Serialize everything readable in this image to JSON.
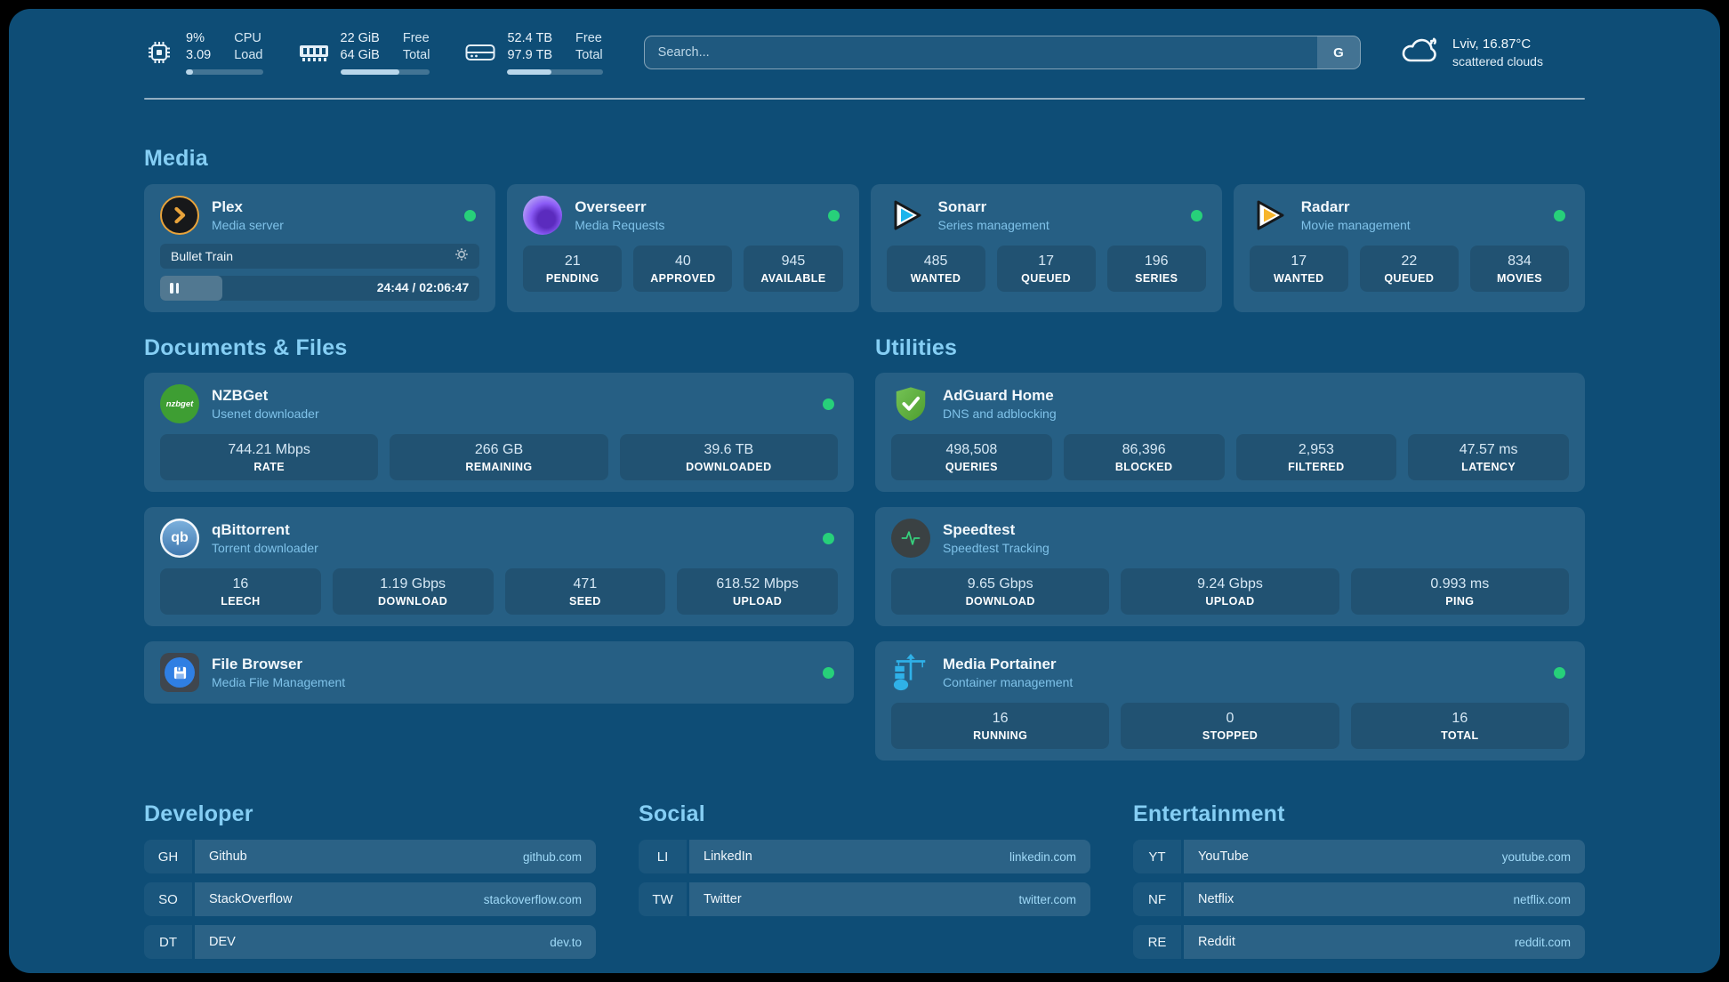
{
  "colors": {
    "background": "#0E4D76",
    "accent": "#85CEF4",
    "status_online": "#27D07A"
  },
  "topbar": {
    "stats": [
      {
        "icon": "cpu-icon",
        "values": [
          "9%",
          "3.09"
        ],
        "labels": [
          "CPU",
          "Load"
        ],
        "progress_pct": 9
      },
      {
        "icon": "memory-icon",
        "values": [
          "22 GiB",
          "64 GiB"
        ],
        "labels": [
          "Free",
          "Total"
        ],
        "progress_pct": 66
      },
      {
        "icon": "disk-icon",
        "values": [
          "52.4 TB",
          "97.9 TB"
        ],
        "labels": [
          "Free",
          "Total"
        ],
        "progress_pct": 46
      }
    ],
    "search": {
      "placeholder": "Search...",
      "button_label": "G"
    },
    "weather": {
      "icon": "cloud-icon",
      "line1": "Lviv, 16.87°C",
      "line2": "scattered clouds"
    }
  },
  "sections": {
    "media": {
      "title": "Media",
      "plex": {
        "title": "Plex",
        "subtitle": "Media server",
        "now_playing": "Bullet Train",
        "time": "24:44 / 02:06:47",
        "progress_pct": 19.5
      },
      "overseerr": {
        "title": "Overseerr",
        "subtitle": "Media Requests",
        "stats": [
          {
            "value": "21",
            "label": "PENDING"
          },
          {
            "value": "40",
            "label": "APPROVED"
          },
          {
            "value": "945",
            "label": "AVAILABLE"
          }
        ]
      },
      "sonarr": {
        "title": "Sonarr",
        "subtitle": "Series management",
        "stats": [
          {
            "value": "485",
            "label": "WANTED"
          },
          {
            "value": "17",
            "label": "QUEUED"
          },
          {
            "value": "196",
            "label": "SERIES"
          }
        ]
      },
      "radarr": {
        "title": "Radarr",
        "subtitle": "Movie management",
        "stats": [
          {
            "value": "17",
            "label": "WANTED"
          },
          {
            "value": "22",
            "label": "QUEUED"
          },
          {
            "value": "834",
            "label": "MOVIES"
          }
        ]
      }
    },
    "documents": {
      "title": "Documents & Files",
      "nzbget": {
        "title": "NZBGet",
        "subtitle": "Usenet downloader",
        "logo_text": "nzbget",
        "stats": [
          {
            "value": "744.21 Mbps",
            "label": "RATE"
          },
          {
            "value": "266 GB",
            "label": "REMAINING"
          },
          {
            "value": "39.6 TB",
            "label": "DOWNLOADED"
          }
        ]
      },
      "qbittorrent": {
        "title": "qBittorrent",
        "subtitle": "Torrent downloader",
        "logo_text": "qb",
        "stats": [
          {
            "value": "16",
            "label": "LEECH"
          },
          {
            "value": "1.19 Gbps",
            "label": "DOWNLOAD"
          },
          {
            "value": "471",
            "label": "SEED"
          },
          {
            "value": "618.52 Mbps",
            "label": "UPLOAD"
          }
        ]
      },
      "filebrowser": {
        "title": "File Browser",
        "subtitle": "Media File Management"
      }
    },
    "utilities": {
      "title": "Utilities",
      "adguard": {
        "title": "AdGuard Home",
        "subtitle": "DNS and adblocking",
        "stats": [
          {
            "value": "498,508",
            "label": "QUERIES"
          },
          {
            "value": "86,396",
            "label": "BLOCKED"
          },
          {
            "value": "2,953",
            "label": "FILTERED"
          },
          {
            "value": "47.57 ms",
            "label": "LATENCY"
          }
        ]
      },
      "speedtest": {
        "title": "Speedtest",
        "subtitle": "Speedtest Tracking",
        "stats": [
          {
            "value": "9.65 Gbps",
            "label": "DOWNLOAD"
          },
          {
            "value": "9.24 Gbps",
            "label": "UPLOAD"
          },
          {
            "value": "0.993 ms",
            "label": "PING"
          }
        ]
      },
      "portainer": {
        "title": "Media Portainer",
        "subtitle": "Container management",
        "stats": [
          {
            "value": "16",
            "label": "RUNNING"
          },
          {
            "value": "0",
            "label": "STOPPED"
          },
          {
            "value": "16",
            "label": "TOTAL"
          }
        ]
      }
    },
    "bookmarks": {
      "developer": {
        "title": "Developer",
        "links": [
          {
            "abbr": "GH",
            "name": "Github",
            "url": "github.com"
          },
          {
            "abbr": "SO",
            "name": "StackOverflow",
            "url": "stackoverflow.com"
          },
          {
            "abbr": "DT",
            "name": "DEV",
            "url": "dev.to"
          }
        ]
      },
      "social": {
        "title": "Social",
        "links": [
          {
            "abbr": "LI",
            "name": "LinkedIn",
            "url": "linkedin.com"
          },
          {
            "abbr": "TW",
            "name": "Twitter",
            "url": "twitter.com"
          }
        ]
      },
      "entertainment": {
        "title": "Entertainment",
        "links": [
          {
            "abbr": "YT",
            "name": "YouTube",
            "url": "youtube.com"
          },
          {
            "abbr": "NF",
            "name": "Netflix",
            "url": "netflix.com"
          },
          {
            "abbr": "RE",
            "name": "Reddit",
            "url": "reddit.com"
          }
        ]
      }
    }
  }
}
